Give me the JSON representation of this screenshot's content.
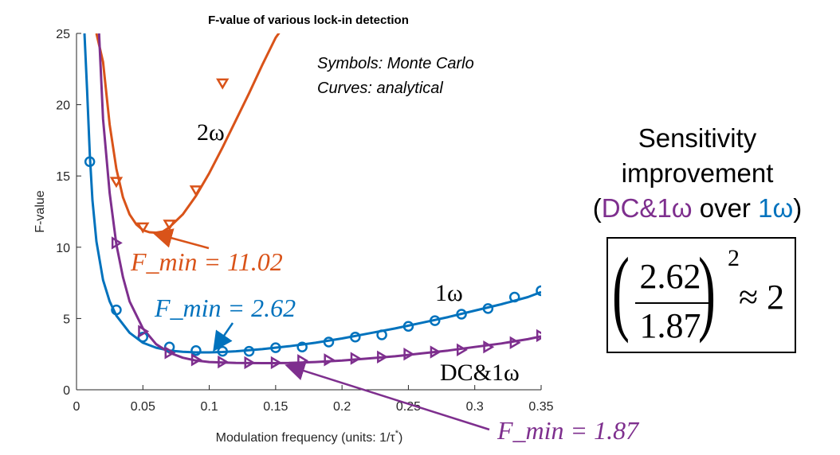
{
  "chart_data": {
    "type": "line",
    "title": "F-value of various lock-in detection",
    "xlabel": "Modulation frequency (units: 1/τ*)",
    "ylabel": "F-value",
    "xlim": [
      0,
      0.35
    ],
    "ylim": [
      0,
      25
    ],
    "xticks": [
      "0",
      "0.05",
      "0.1",
      "0.15",
      "0.2",
      "0.25",
      "0.3",
      "0.35"
    ],
    "yticks": [
      "0",
      "5",
      "10",
      "15",
      "20",
      "25"
    ],
    "grid": false,
    "annotation_text": [
      "Symbols: Monte Carlo",
      "Curves: analytical"
    ],
    "series": [
      {
        "name": "2ω",
        "color": "#D95319",
        "marker": "triangle-down",
        "markers": [
          [
            0.03,
            14.6
          ],
          [
            0.05,
            11.4
          ],
          [
            0.07,
            11.6
          ],
          [
            0.09,
            14.0
          ],
          [
            0.11,
            21.5
          ]
        ],
        "curve_x": [
          0.015,
          0.02,
          0.025,
          0.03,
          0.035,
          0.04,
          0.045,
          0.05,
          0.055,
          0.06,
          0.065,
          0.07,
          0.08,
          0.09,
          0.1,
          0.11,
          0.12,
          0.13,
          0.14,
          0.15,
          0.16
        ],
        "curve_y": [
          25.0,
          23.0,
          18.6,
          15.5,
          13.5,
          12.3,
          11.6,
          11.2,
          11.05,
          11.02,
          11.1,
          11.4,
          12.3,
          13.6,
          15.2,
          17.0,
          18.9,
          20.8,
          22.8,
          24.7,
          26.0
        ],
        "label": "2ω",
        "fmin_label": "F_min = 11.02",
        "fmin_value": 11.02
      },
      {
        "name": "1ω",
        "color": "#0072BD",
        "marker": "circle",
        "markers": [
          [
            0.01,
            16.0
          ],
          [
            0.03,
            5.6
          ],
          [
            0.05,
            3.7
          ],
          [
            0.07,
            3.0
          ],
          [
            0.09,
            2.75
          ],
          [
            0.11,
            2.7
          ],
          [
            0.13,
            2.7
          ],
          [
            0.15,
            2.95
          ],
          [
            0.17,
            3.0
          ],
          [
            0.19,
            3.35
          ],
          [
            0.21,
            3.7
          ],
          [
            0.23,
            3.85
          ],
          [
            0.25,
            4.45
          ],
          [
            0.27,
            4.85
          ],
          [
            0.29,
            5.3
          ],
          [
            0.31,
            5.7
          ],
          [
            0.33,
            6.5
          ],
          [
            0.35,
            6.95
          ]
        ],
        "curve_x": [
          0.006,
          0.008,
          0.01,
          0.012,
          0.015,
          0.02,
          0.025,
          0.03,
          0.04,
          0.05,
          0.06,
          0.07,
          0.08,
          0.09,
          0.1,
          0.11,
          0.12,
          0.14,
          0.16,
          0.18,
          0.2,
          0.22,
          0.24,
          0.26,
          0.28,
          0.3,
          0.32,
          0.34,
          0.35
        ],
        "curve_y": [
          25.0,
          21.0,
          16.5,
          13.3,
          10.4,
          7.7,
          6.2,
          5.2,
          4.0,
          3.3,
          2.95,
          2.75,
          2.66,
          2.62,
          2.62,
          2.65,
          2.7,
          2.85,
          3.05,
          3.3,
          3.6,
          3.95,
          4.3,
          4.7,
          5.1,
          5.55,
          6.0,
          6.5,
          6.85
        ],
        "label": "1ω",
        "fmin_label": "F_min = 2.62",
        "fmin_value": 2.62
      },
      {
        "name": "DC&1ω",
        "color": "#7E2F8E",
        "marker": "triangle-right",
        "markers": [
          [
            0.03,
            10.3
          ],
          [
            0.05,
            4.1
          ],
          [
            0.07,
            2.6
          ],
          [
            0.09,
            2.1
          ],
          [
            0.11,
            1.95
          ],
          [
            0.13,
            1.9
          ],
          [
            0.15,
            1.9
          ],
          [
            0.17,
            2.05
          ],
          [
            0.19,
            2.1
          ],
          [
            0.21,
            2.2
          ],
          [
            0.23,
            2.3
          ],
          [
            0.25,
            2.5
          ],
          [
            0.27,
            2.65
          ],
          [
            0.29,
            2.8
          ],
          [
            0.31,
            3.0
          ],
          [
            0.33,
            3.3
          ],
          [
            0.35,
            3.8
          ]
        ],
        "curve_x": [
          0.017,
          0.02,
          0.025,
          0.03,
          0.035,
          0.04,
          0.05,
          0.06,
          0.07,
          0.08,
          0.09,
          0.1,
          0.12,
          0.14,
          0.15,
          0.16,
          0.18,
          0.2,
          0.22,
          0.24,
          0.26,
          0.28,
          0.3,
          0.32,
          0.34,
          0.35
        ],
        "curve_y": [
          25.0,
          19.0,
          13.8,
          10.2,
          7.9,
          6.2,
          4.3,
          3.2,
          2.6,
          2.25,
          2.05,
          1.95,
          1.88,
          1.87,
          1.87,
          1.88,
          1.95,
          2.05,
          2.2,
          2.35,
          2.55,
          2.75,
          3.0,
          3.25,
          3.55,
          3.75
        ],
        "label": "DC&1ω",
        "fmin_label": "F_min = 1.87",
        "fmin_value": 1.87
      }
    ]
  },
  "sensitivity_panel": {
    "line1": "Sensitivity",
    "line2": "improvement",
    "line3_open": "(",
    "line3_dc": "DC&1ω",
    "line3_over": " over ",
    "line3_1w": "1ω",
    "line3_close": ")",
    "dc_color": "#7E2F8E",
    "w_color": "#0072BD",
    "numerator": "2.62",
    "denominator": "1.87",
    "exponent": "2",
    "approx": "≈ 2"
  }
}
